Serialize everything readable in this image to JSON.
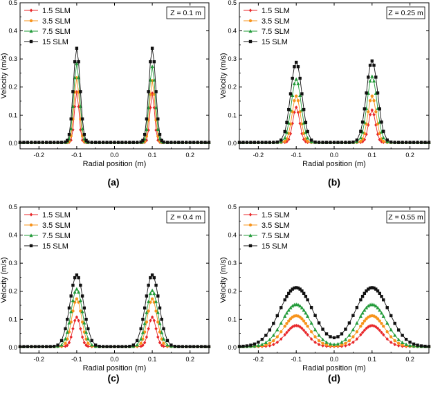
{
  "chart_data": [
    {
      "type": "line",
      "panel_label": "(a)",
      "annotation": "Z = 0.1 m",
      "xlabel": "Radial position (m)",
      "ylabel": "Velocity (m/s)",
      "xlim": [
        -0.25,
        0.25
      ],
      "ylim": [
        -0.02,
        0.5
      ],
      "xticks": [
        -0.2,
        -0.1,
        0.0,
        0.1,
        0.2
      ],
      "yticks": [
        0.0,
        0.1,
        0.2,
        0.3,
        0.4,
        0.5
      ],
      "legend_position": "top-left",
      "series": [
        {
          "name": "1.5 SLM",
          "color": "#e8272a",
          "marker": "diamond",
          "peaks": [
            0.18,
            0.175
          ],
          "widths": [
            0.006,
            0.006
          ]
        },
        {
          "name": "3.5 SLM",
          "color": "#f7941d",
          "marker": "circle",
          "peaks": [
            0.23,
            0.22
          ],
          "widths": [
            0.007,
            0.007
          ]
        },
        {
          "name": "7.5 SLM",
          "color": "#239b3a",
          "marker": "triangle",
          "peaks": [
            0.28,
            0.27
          ],
          "widths": [
            0.008,
            0.008
          ]
        },
        {
          "name": "15  SLM",
          "color": "#111111",
          "marker": "square",
          "peaks": [
            0.335,
            0.335
          ],
          "widths": [
            0.009,
            0.009
          ]
        }
      ]
    },
    {
      "type": "line",
      "panel_label": "(b)",
      "annotation": "Z = 0.25 m",
      "xlabel": "Radial position (m)",
      "ylabel": "Velocity (m/s)",
      "xlim": [
        -0.25,
        0.25
      ],
      "ylim": [
        -0.02,
        0.5
      ],
      "xticks": [
        -0.2,
        -0.1,
        0.0,
        0.1,
        0.2
      ],
      "yticks": [
        0.0,
        0.1,
        0.2,
        0.3,
        0.4,
        0.5
      ],
      "legend_position": "top-left",
      "series": [
        {
          "name": "1.5 SLM",
          "color": "#e8272a",
          "marker": "diamond",
          "peaks": [
            0.125,
            0.115
          ],
          "widths": [
            0.009,
            0.009
          ]
        },
        {
          "name": "3.5 SLM",
          "color": "#f7941d",
          "marker": "circle",
          "peaks": [
            0.165,
            0.165
          ],
          "widths": [
            0.011,
            0.011
          ]
        },
        {
          "name": "7.5 SLM",
          "color": "#239b3a",
          "marker": "triangle",
          "peaks": [
            0.225,
            0.235
          ],
          "widths": [
            0.013,
            0.013
          ]
        },
        {
          "name": "15  SLM",
          "color": "#111111",
          "marker": "square",
          "peaks": [
            0.285,
            0.29
          ],
          "widths": [
            0.015,
            0.015
          ]
        }
      ]
    },
    {
      "type": "line",
      "panel_label": "(c)",
      "annotation": "Z = 0.4 m",
      "xlabel": "Radial position (m)",
      "ylabel": "Velocity (m/s)",
      "xlim": [
        -0.25,
        0.25
      ],
      "ylim": [
        -0.02,
        0.5
      ],
      "xticks": [
        -0.2,
        -0.1,
        0.0,
        0.1,
        0.2
      ],
      "yticks": [
        0.0,
        0.1,
        0.2,
        0.3,
        0.4,
        0.5
      ],
      "legend_position": "top-left",
      "series": [
        {
          "name": "1.5 SLM",
          "color": "#e8272a",
          "marker": "diamond",
          "peaks": [
            0.105,
            0.105
          ],
          "widths": [
            0.01,
            0.01
          ]
        },
        {
          "name": "3.5 SLM",
          "color": "#f7941d",
          "marker": "circle",
          "peaks": [
            0.17,
            0.17
          ],
          "widths": [
            0.013,
            0.013
          ]
        },
        {
          "name": "7.5 SLM",
          "color": "#239b3a",
          "marker": "triangle",
          "peaks": [
            0.205,
            0.2
          ],
          "widths": [
            0.015,
            0.015
          ]
        },
        {
          "name": "15  SLM",
          "color": "#111111",
          "marker": "square",
          "peaks": [
            0.255,
            0.255
          ],
          "widths": [
            0.018,
            0.018
          ]
        }
      ]
    },
    {
      "type": "line",
      "panel_label": "(d)",
      "annotation": "Z = 0.55 m",
      "xlabel": "Radial position (m)",
      "ylabel": "Velocity (m/s)",
      "xlim": [
        -0.25,
        0.25
      ],
      "ylim": [
        -0.02,
        0.5
      ],
      "xticks": [
        -0.2,
        -0.1,
        0.0,
        0.1,
        0.2
      ],
      "yticks": [
        0.0,
        0.1,
        0.2,
        0.3,
        0.4,
        0.5
      ],
      "legend_position": "top-left",
      "series": [
        {
          "name": "1.5 SLM",
          "color": "#e8272a",
          "marker": "diamond",
          "peaks": [
            0.075,
            0.075
          ],
          "widths": [
            0.028,
            0.028
          ]
        },
        {
          "name": "3.5 SLM",
          "color": "#f7941d",
          "marker": "circle",
          "peaks": [
            0.11,
            0.11
          ],
          "widths": [
            0.033,
            0.033
          ]
        },
        {
          "name": "7.5 SLM",
          "color": "#239b3a",
          "marker": "triangle",
          "peaks": [
            0.15,
            0.15
          ],
          "widths": [
            0.037,
            0.037
          ]
        },
        {
          "name": "15  SLM",
          "color": "#111111",
          "marker": "square",
          "peaks": [
            0.21,
            0.21
          ],
          "widths": [
            0.044,
            0.044
          ]
        }
      ]
    }
  ]
}
